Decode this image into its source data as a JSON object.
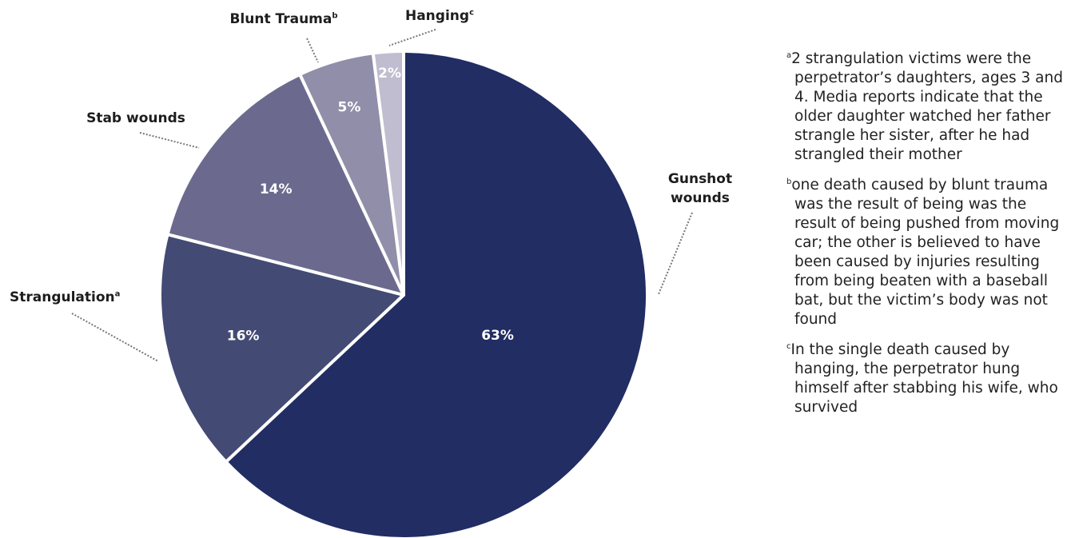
{
  "chart_data": {
    "type": "pie",
    "categories": [
      "Gunshot wounds",
      "Strangulation",
      "Stab wounds",
      "Blunt Trauma",
      "Hanging"
    ],
    "category_notes": [
      null,
      "a",
      null,
      "b",
      "c"
    ],
    "values": [
      63,
      16,
      14,
      5,
      2
    ],
    "value_labels": [
      "63%",
      "16%",
      "14%",
      "5%",
      "2%"
    ],
    "colors": [
      "#212d63",
      "#434a74",
      "#6b6a8e",
      "#908ea9",
      "#c0bdd0"
    ],
    "footnotes": [
      {
        "mark": "a",
        "text": "2 strangulation victims were the perpetrator’s daughters, ages 3 and 4. Media reports indicate that the older daughter watched her father strangle her sister, after he had strangled their mother"
      },
      {
        "mark": "b",
        "text": "one death caused by blunt trauma was the result of being was the result of being pushed from moving car; the other is believed to have been caused by injuries resulting from being beaten with a baseball bat, but the victim’s body was not found"
      },
      {
        "mark": "c",
        "text": "In the single death caused by hanging, the perpetrator hung himself after stabbing his wife, who survived"
      }
    ]
  }
}
